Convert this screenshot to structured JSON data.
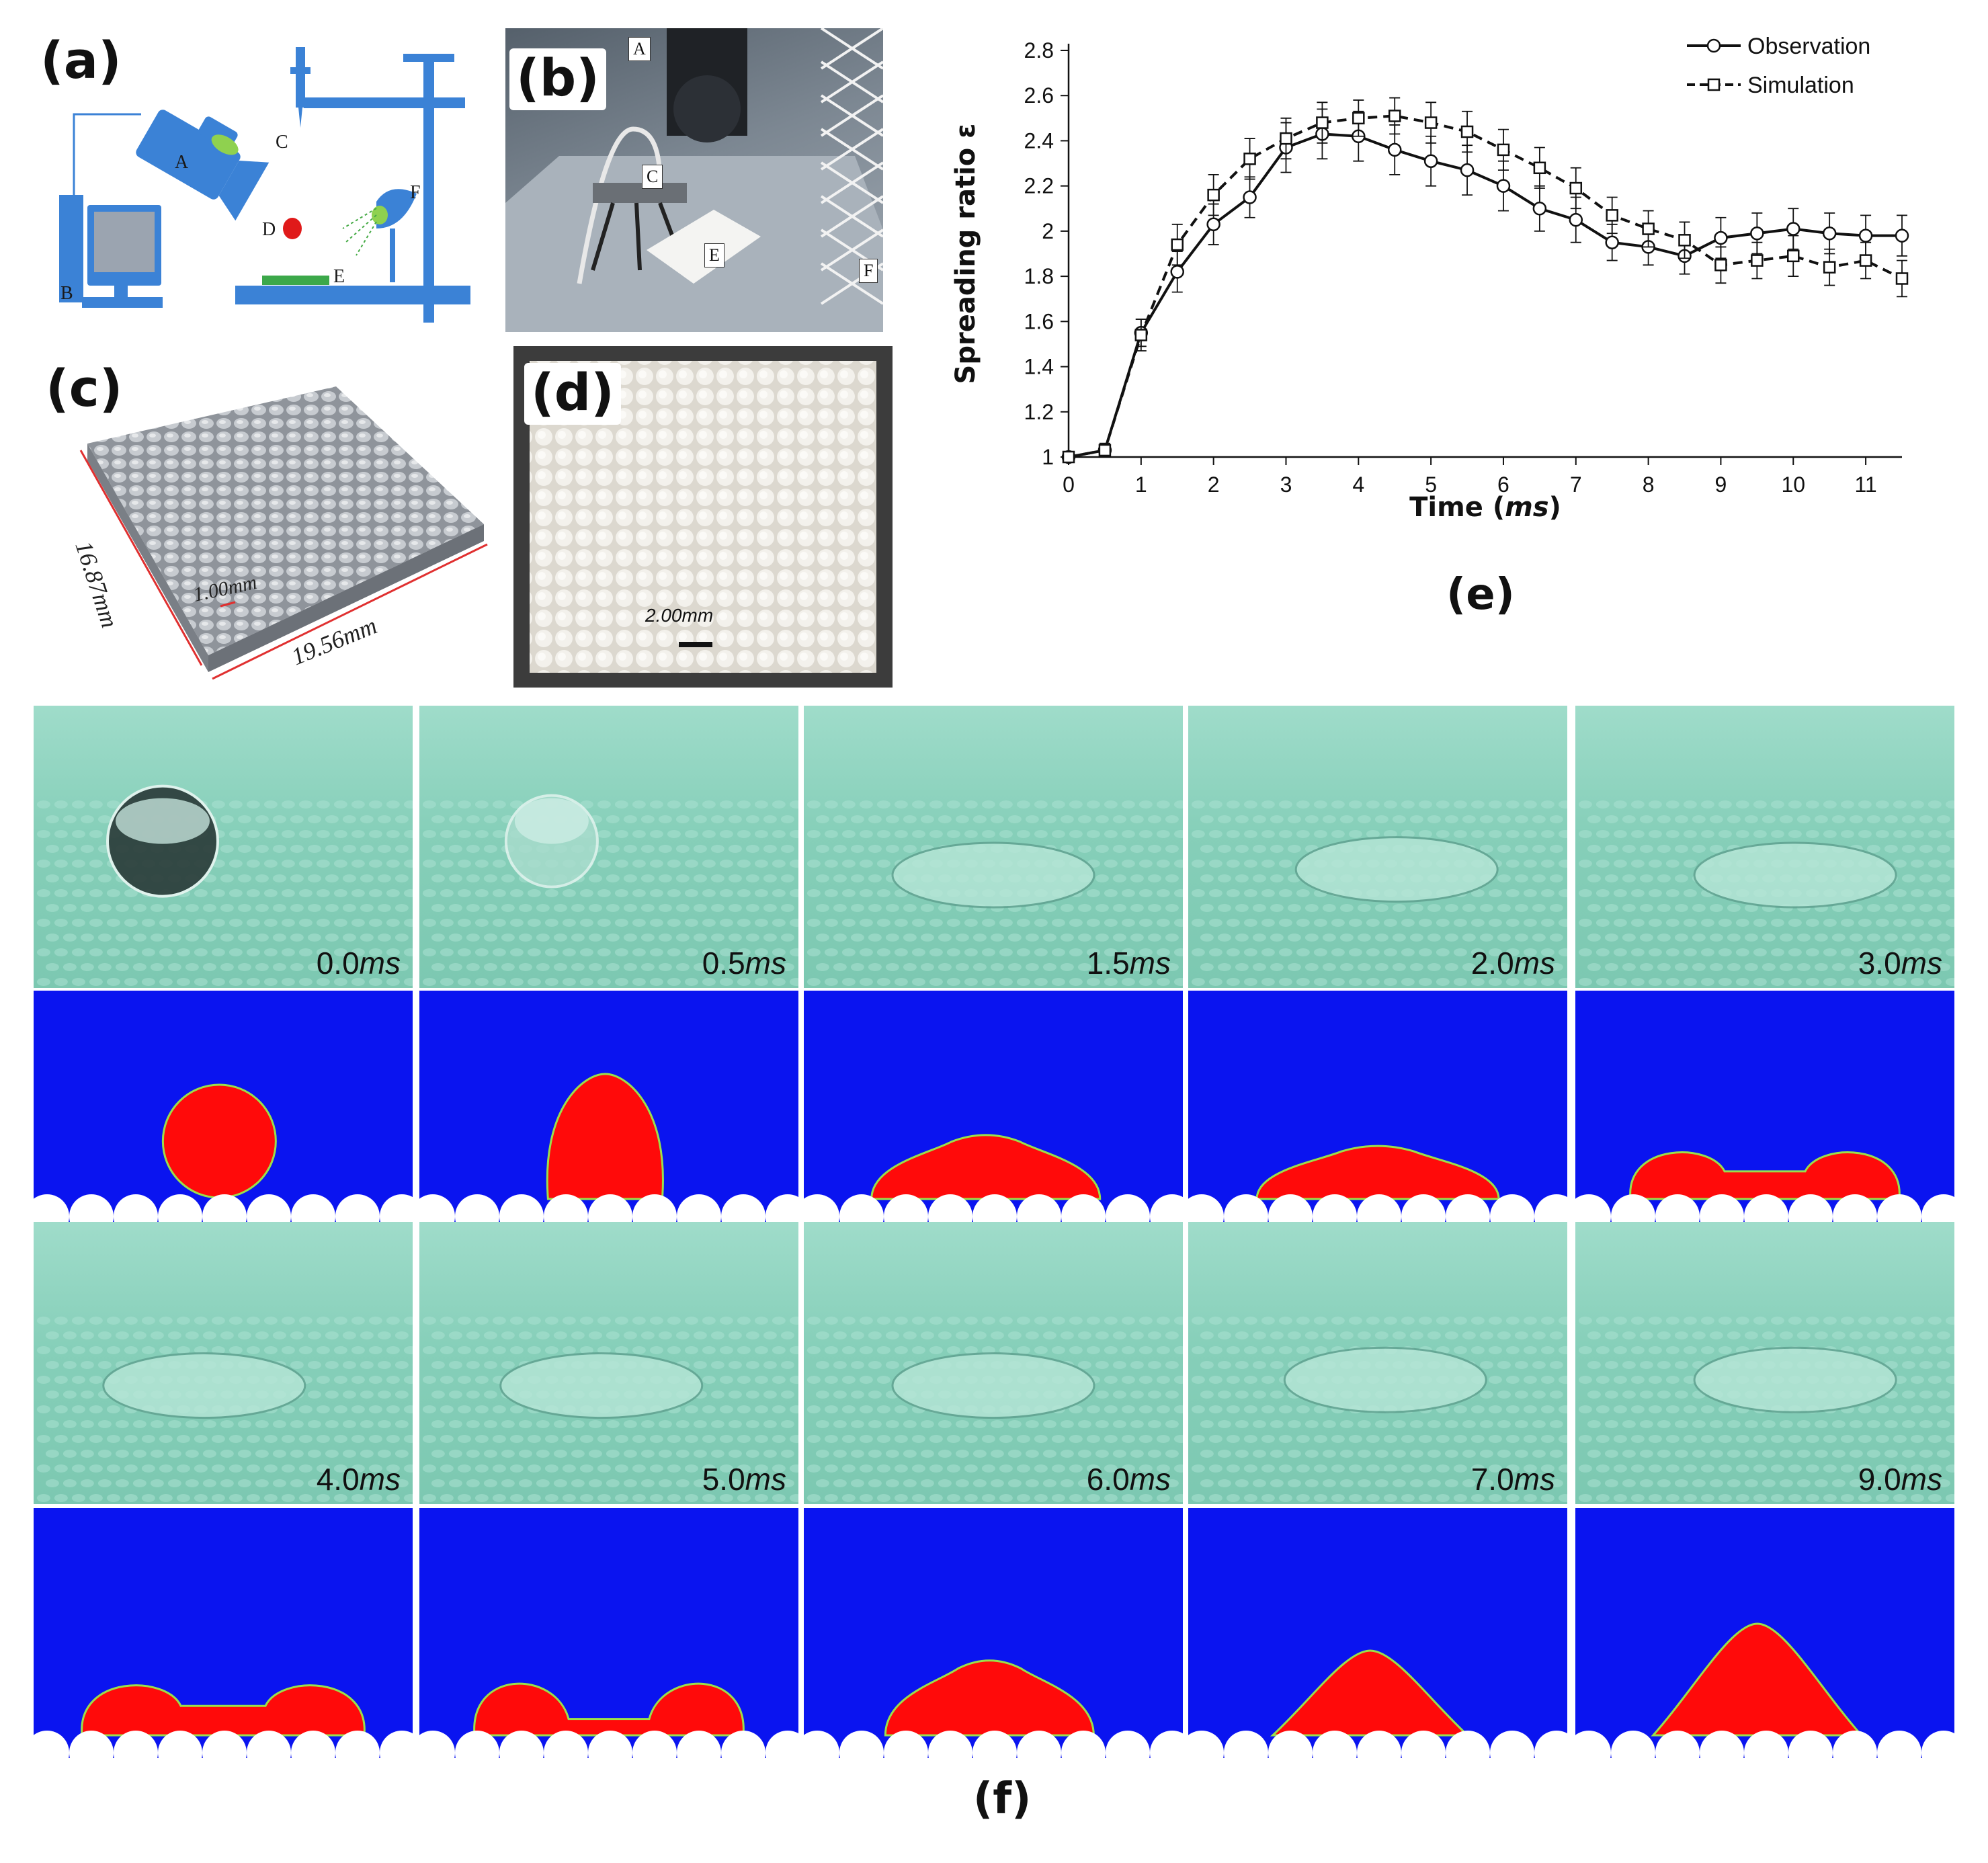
{
  "labels": {
    "a": "(a)",
    "b": "(b)",
    "c": "(c)",
    "d": "(d)",
    "e": "(e)",
    "f": "(f)"
  },
  "schematic_a": {
    "A": "A",
    "B": "B",
    "C": "C",
    "D": "D",
    "E": "E",
    "F": "F"
  },
  "photo_b": {
    "A": "A",
    "C": "C",
    "E": "E",
    "F": "F"
  },
  "model_c": {
    "dim_depth": "16.87mm",
    "dim_width": "19.56mm",
    "dim_pitch": "1.00mm"
  },
  "photo_d": {
    "scale_bar": "2.00mm"
  },
  "colors": {
    "exp_bg": "#8fd5c0",
    "sim_bg": "#0a14f0",
    "droplet": "#ff0a0a",
    "substrate": "#ffffff"
  },
  "chart_data": {
    "type": "line",
    "title": "",
    "xlabel_main": "Time (",
    "xlabel_unit": "ms",
    "xlabel_close": ")",
    "ylabel": "Spreading ratio ε",
    "xlim": [
      0,
      11.5
    ],
    "ylim": [
      1,
      2.8
    ],
    "xticks": [
      0,
      1,
      2,
      3,
      4,
      5,
      6,
      7,
      8,
      9,
      10,
      11
    ],
    "yticks": [
      1,
      1.2,
      1.4,
      1.6,
      1.8,
      2,
      2.2,
      2.4,
      2.6,
      2.8
    ],
    "ytick_labels": [
      "1",
      "1.2",
      "1.4",
      "1.6",
      "1.8",
      "2",
      "2.2",
      "2.4",
      "2.6",
      "2.8"
    ],
    "legend_position": "top-right",
    "series": [
      {
        "name": "Observation",
        "style": "solid",
        "marker": "circle",
        "x": [
          0,
          0.5,
          1,
          1.5,
          2,
          2.5,
          3,
          3.5,
          4,
          4.5,
          5,
          5.5,
          6,
          6.5,
          7,
          7.5,
          8,
          8.5,
          9,
          9.5,
          10,
          10.5,
          11,
          11.5
        ],
        "y": [
          1.0,
          1.03,
          1.55,
          1.82,
          2.03,
          2.15,
          2.37,
          2.43,
          2.42,
          2.36,
          2.31,
          2.27,
          2.2,
          2.1,
          2.05,
          1.95,
          1.93,
          1.89,
          1.97,
          1.99,
          2.01,
          1.99,
          1.98,
          1.98
        ],
        "err": [
          0,
          0.03,
          0.06,
          0.09,
          0.09,
          0.09,
          0.11,
          0.11,
          0.11,
          0.11,
          0.11,
          0.11,
          0.11,
          0.1,
          0.1,
          0.08,
          0.08,
          0.08,
          0.09,
          0.09,
          0.09,
          0.09,
          0.09,
          0.09
        ]
      },
      {
        "name": "Simulation",
        "style": "dashed",
        "marker": "square",
        "x": [
          0,
          0.5,
          1,
          1.5,
          2,
          2.5,
          3,
          3.5,
          4,
          4.5,
          5,
          5.5,
          6,
          6.5,
          7,
          7.5,
          8,
          8.5,
          9,
          9.5,
          10,
          10.5,
          11,
          11.5
        ],
        "y": [
          1.0,
          1.03,
          1.54,
          1.94,
          2.16,
          2.32,
          2.41,
          2.48,
          2.5,
          2.51,
          2.48,
          2.44,
          2.36,
          2.28,
          2.19,
          2.07,
          2.01,
          1.96,
          1.85,
          1.87,
          1.89,
          1.84,
          1.87,
          1.79
        ],
        "err": [
          0,
          0.03,
          0.07,
          0.09,
          0.09,
          0.09,
          0.09,
          0.09,
          0.08,
          0.08,
          0.09,
          0.09,
          0.09,
          0.09,
          0.09,
          0.08,
          0.08,
          0.08,
          0.08,
          0.08,
          0.09,
          0.08,
          0.08,
          0.08
        ]
      }
    ]
  },
  "frames_row1": [
    {
      "t": "0.0",
      "unit": "ms"
    },
    {
      "t": "0.5",
      "unit": "ms"
    },
    {
      "t": "1.5",
      "unit": "ms"
    },
    {
      "t": "2.0",
      "unit": "ms"
    },
    {
      "t": "3.0",
      "unit": "ms"
    }
  ],
  "frames_row2": [
    {
      "t": "4.0",
      "unit": "ms"
    },
    {
      "t": "5.0",
      "unit": "ms"
    },
    {
      "t": "6.0",
      "unit": "ms"
    },
    {
      "t": "7.0",
      "unit": "ms"
    },
    {
      "t": "9.0",
      "unit": "ms"
    }
  ]
}
